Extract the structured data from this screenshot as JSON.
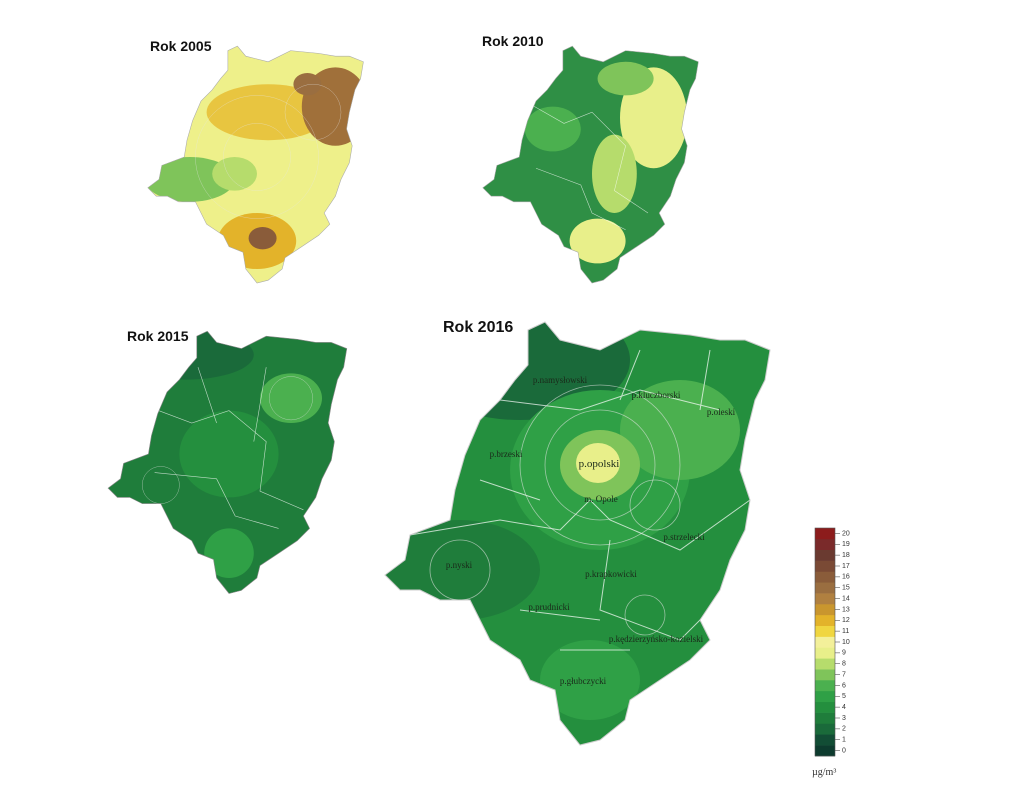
{
  "maps": [
    {
      "title": "Rok 2005"
    },
    {
      "title": "Rok 2010"
    },
    {
      "title": "Rok 2015"
    },
    {
      "title": "Rok 2016",
      "labels": [
        "p.namysłowski",
        "p.kluczborski",
        "p.oleski",
        "p.brzeski",
        "p.opolski",
        "m. Opole",
        "p.strzelecki",
        "p.nyski",
        "p.krapkowicki",
        "p.prudnicki",
        "p.kędzierzyńsko-kozielski",
        "p.głubczycki"
      ]
    }
  ],
  "legend": {
    "ticks": [
      0,
      1,
      2,
      3,
      4,
      5,
      6,
      7,
      8,
      9,
      10,
      11,
      12,
      13,
      14,
      15,
      16,
      17,
      18,
      19,
      20
    ],
    "colors": [
      "#0d3b2e",
      "#124d35",
      "#1a6a3a",
      "#1f7d3b",
      "#248f3e",
      "#2fa046",
      "#4bb04f",
      "#7fc45a",
      "#b6dc6c",
      "#e8ef8a",
      "#f3f09a",
      "#f0d640",
      "#e3b32a",
      "#c9962e",
      "#b08040",
      "#9a6e40",
      "#8a5c3a",
      "#7a4a35",
      "#6a3a30",
      "#7a2a2a",
      "#8c1c1c"
    ],
    "unit": "µg/m³"
  }
}
